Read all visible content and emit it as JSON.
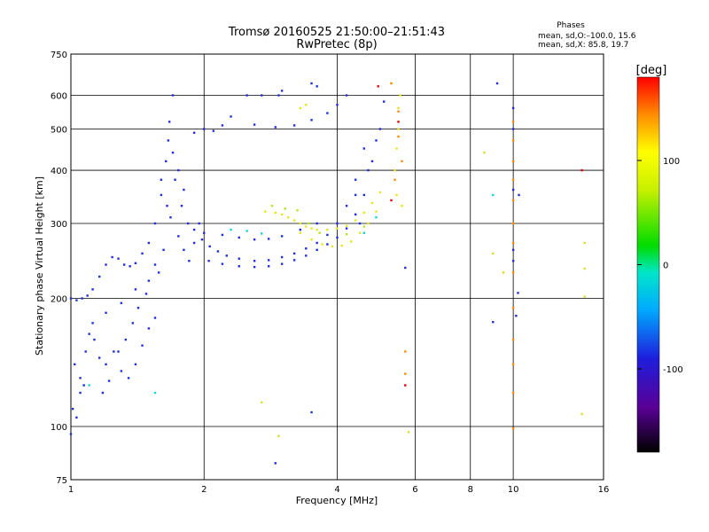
{
  "chart_data": {
    "type": "scatter",
    "title": "Tromsø 20160525 21:50:00–21:51:43",
    "subtitle": "RwPretec (8p)",
    "stats_title": "Phases",
    "stats_line_1": "mean, sd,O:–100.0, 15.6",
    "stats_line_2": "mean, sd,X:  85.8, 19.7",
    "xlabel": "Frequency [MHz]",
    "ylabel": "Stationary phase Virtual Height [km]",
    "x_scale": "log",
    "y_scale": "log",
    "xlim": [
      1,
      16
    ],
    "ylim": [
      75,
      750
    ],
    "x_ticks": [
      1,
      2,
      4,
      6,
      8,
      10,
      16
    ],
    "x_tick_labels": [
      "1",
      "2",
      "4",
      "6",
      "8",
      "10",
      "16"
    ],
    "y_ticks": [
      75,
      100,
      200,
      300,
      400,
      500,
      600,
      750
    ],
    "y_tick_labels": [
      "75",
      "100",
      "200",
      "300",
      "400",
      "500",
      "600",
      "750"
    ],
    "grid": true,
    "colorbar": {
      "label": "[deg]",
      "range": [
        -180,
        180
      ],
      "ticks": [
        100,
        0,
        -100
      ],
      "tick_labels": [
        "100",
        "0",
        "-100"
      ]
    },
    "series": [
      {
        "color": "#1f2ee0",
        "points": [
          [
            1.0,
            200
          ],
          [
            1.03,
            198
          ],
          [
            1.06,
            200
          ],
          [
            1.09,
            203
          ],
          [
            1.12,
            210
          ],
          [
            1.16,
            225
          ],
          [
            1.2,
            240
          ],
          [
            1.24,
            250
          ],
          [
            1.28,
            248
          ],
          [
            1.32,
            240
          ],
          [
            1.36,
            238
          ],
          [
            1.4,
            242
          ],
          [
            1.45,
            255
          ],
          [
            1.5,
            270
          ],
          [
            1.55,
            300
          ],
          [
            1.6,
            350
          ],
          [
            1.64,
            420
          ],
          [
            1.67,
            520
          ],
          [
            1.7,
            600
          ],
          [
            1.66,
            470
          ],
          [
            1.72,
            380
          ],
          [
            1.78,
            330
          ],
          [
            1.84,
            300
          ],
          [
            1.9,
            290
          ],
          [
            1.98,
            275
          ],
          [
            2.06,
            265
          ],
          [
            2.15,
            258
          ],
          [
            2.25,
            252
          ],
          [
            2.4,
            248
          ],
          [
            2.6,
            245
          ],
          [
            2.8,
            246
          ],
          [
            3.0,
            250
          ],
          [
            3.2,
            255
          ],
          [
            3.4,
            262
          ],
          [
            3.6,
            270
          ],
          [
            3.8,
            282
          ],
          [
            4.0,
            300
          ],
          [
            4.2,
            330
          ],
          [
            4.4,
            380
          ],
          [
            4.6,
            450
          ],
          [
            2.05,
            245
          ],
          [
            2.2,
            241
          ],
          [
            2.4,
            238
          ],
          [
            2.6,
            237
          ],
          [
            2.8,
            238
          ],
          [
            3.0,
            241
          ],
          [
            3.2,
            246
          ],
          [
            3.4,
            252
          ],
          [
            3.6,
            260
          ],
          [
            3.8,
            268
          ],
          [
            4.0,
            278
          ],
          [
            4.2,
            292
          ],
          [
            4.4,
            315
          ],
          [
            4.6,
            350
          ],
          [
            4.8,
            420
          ],
          [
            5.0,
            500
          ],
          [
            5.1,
            580
          ],
          [
            2.0,
            285
          ],
          [
            2.2,
            282
          ],
          [
            2.4,
            278
          ],
          [
            2.6,
            275
          ],
          [
            2.8,
            276
          ],
          [
            3.0,
            280
          ],
          [
            3.3,
            290
          ],
          [
            3.6,
            300
          ],
          [
            2.3,
            535
          ],
          [
            2.6,
            512
          ],
          [
            2.9,
            505
          ],
          [
            3.2,
            510
          ],
          [
            3.5,
            525
          ],
          [
            3.8,
            545
          ],
          [
            4.0,
            570
          ],
          [
            4.2,
            600
          ],
          [
            1.9,
            490
          ],
          [
            2.0,
            500
          ],
          [
            2.1,
            495
          ],
          [
            2.2,
            510
          ],
          [
            2.5,
            600
          ],
          [
            2.7,
            600
          ],
          [
            3.0,
            615
          ],
          [
            1.02,
            140
          ],
          [
            1.05,
            130
          ],
          [
            1.08,
            150
          ],
          [
            1.1,
            165
          ],
          [
            1.13,
            160
          ],
          [
            1.16,
            145
          ],
          [
            1.2,
            140
          ],
          [
            1.25,
            150
          ],
          [
            1.3,
            135
          ],
          [
            1.35,
            130
          ],
          [
            1.4,
            140
          ],
          [
            1.45,
            155
          ],
          [
            1.5,
            170
          ],
          [
            1.55,
            180
          ],
          [
            1.01,
            110
          ],
          [
            1.03,
            105
          ],
          [
            1.05,
            120
          ],
          [
            1.07,
            125
          ],
          [
            1.12,
            175
          ],
          [
            1.2,
            185
          ],
          [
            1.3,
            195
          ],
          [
            1.4,
            210
          ],
          [
            1.5,
            220
          ],
          [
            1.58,
            230
          ],
          [
            1.62,
            260
          ],
          [
            1.68,
            310
          ],
          [
            1.75,
            280
          ],
          [
            1.8,
            260
          ],
          [
            1.85,
            245
          ],
          [
            1.9,
            270
          ],
          [
            1.95,
            300
          ],
          [
            1.6,
            380
          ],
          [
            1.65,
            330
          ],
          [
            1.7,
            440
          ],
          [
            1.75,
            400
          ],
          [
            1.8,
            360
          ],
          [
            1.55,
            240
          ],
          [
            1.48,
            205
          ],
          [
            1.42,
            190
          ],
          [
            1.38,
            175
          ],
          [
            1.33,
            160
          ],
          [
            1.28,
            150
          ],
          [
            1.22,
            128
          ],
          [
            1.18,
            120
          ],
          [
            4.4,
            350
          ],
          [
            4.5,
            300
          ],
          [
            4.7,
            400
          ],
          [
            4.9,
            470
          ],
          [
            3.5,
            640
          ],
          [
            3.6,
            630
          ],
          [
            2.95,
            600
          ]
        ]
      },
      {
        "color": "#e6e61a",
        "points": [
          [
            2.75,
            320
          ],
          [
            2.9,
            318
          ],
          [
            3.0,
            315
          ],
          [
            3.1,
            310
          ],
          [
            3.2,
            305
          ],
          [
            3.3,
            300
          ],
          [
            3.4,
            295
          ],
          [
            3.5,
            292
          ],
          [
            3.6,
            290
          ],
          [
            3.3,
            285
          ],
          [
            3.5,
            275
          ],
          [
            3.7,
            268
          ],
          [
            3.9,
            265
          ],
          [
            4.1,
            266
          ],
          [
            4.3,
            272
          ],
          [
            4.5,
            285
          ],
          [
            4.7,
            300
          ],
          [
            4.9,
            320
          ],
          [
            3.8,
            290
          ],
          [
            4.0,
            292
          ],
          [
            4.2,
            296
          ],
          [
            4.4,
            305
          ],
          [
            4.6,
            318
          ],
          [
            4.8,
            335
          ],
          [
            5.0,
            355
          ],
          [
            5.4,
            400
          ],
          [
            5.45,
            450
          ],
          [
            5.5,
            500
          ],
          [
            5.5,
            560
          ],
          [
            5.55,
            600
          ],
          [
            5.45,
            350
          ],
          [
            5.6,
            330
          ],
          [
            3.3,
            560
          ],
          [
            3.4,
            570
          ]
        ]
      },
      {
        "color": "#b4e61e",
        "points": [
          [
            2.85,
            330
          ],
          [
            3.05,
            325
          ],
          [
            3.25,
            322
          ],
          [
            3.45,
            300
          ],
          [
            3.65,
            285
          ],
          [
            4.2,
            283
          ],
          [
            4.6,
            295
          ]
        ]
      },
      {
        "color": "#19d2d2",
        "points": [
          [
            2.3,
            290
          ],
          [
            2.5,
            288
          ],
          [
            2.7,
            284
          ],
          [
            4.6,
            285
          ],
          [
            4.9,
            310
          ],
          [
            1.55,
            120
          ],
          [
            1.1,
            125
          ],
          [
            9.0,
            350
          ]
        ]
      },
      {
        "color": "#ff8c00",
        "points": [
          [
            5.3,
            640
          ],
          [
            5.5,
            550
          ],
          [
            5.5,
            480
          ],
          [
            5.6,
            420
          ],
          [
            5.4,
            380
          ],
          [
            10.0,
            520
          ],
          [
            10.0,
            470
          ],
          [
            10.0,
            420
          ],
          [
            10.0,
            380
          ],
          [
            10.0,
            340
          ],
          [
            10.0,
            300
          ],
          [
            10.0,
            270
          ],
          [
            10.0,
            230
          ],
          [
            10.0,
            190
          ],
          [
            10.0,
            160
          ],
          [
            10.0,
            140
          ],
          [
            10.0,
            120
          ],
          [
            10.0,
            99
          ],
          [
            5.7,
            150
          ],
          [
            5.7,
            133
          ]
        ]
      },
      {
        "color": "#e60000",
        "points": [
          [
            5.5,
            520
          ],
          [
            5.3,
            340
          ],
          [
            5.7,
            125
          ],
          [
            14.3,
            400
          ],
          [
            4.95,
            630
          ]
        ]
      },
      {
        "color": "#1e32c8",
        "points": [
          [
            10.0,
            560
          ],
          [
            10.0,
            500
          ],
          [
            10.0,
            360
          ],
          [
            10.0,
            260
          ],
          [
            10.0,
            245
          ],
          [
            10.25,
            206
          ],
          [
            10.15,
            182
          ],
          [
            9.0,
            176
          ],
          [
            9.2,
            640
          ],
          [
            10.3,
            350
          ],
          [
            5.7,
            236
          ],
          [
            2.9,
            82
          ],
          [
            1.0,
            96
          ],
          [
            3.5,
            108
          ]
        ]
      },
      {
        "color": "#dcdc28",
        "points": [
          [
            14.5,
            270
          ],
          [
            14.5,
            235
          ],
          [
            14.5,
            202
          ],
          [
            14.3,
            107
          ],
          [
            9.5,
            230
          ],
          [
            9.0,
            255
          ],
          [
            8.6,
            440
          ],
          [
            2.95,
            95
          ],
          [
            2.7,
            114
          ],
          [
            5.8,
            97
          ]
        ]
      }
    ]
  }
}
